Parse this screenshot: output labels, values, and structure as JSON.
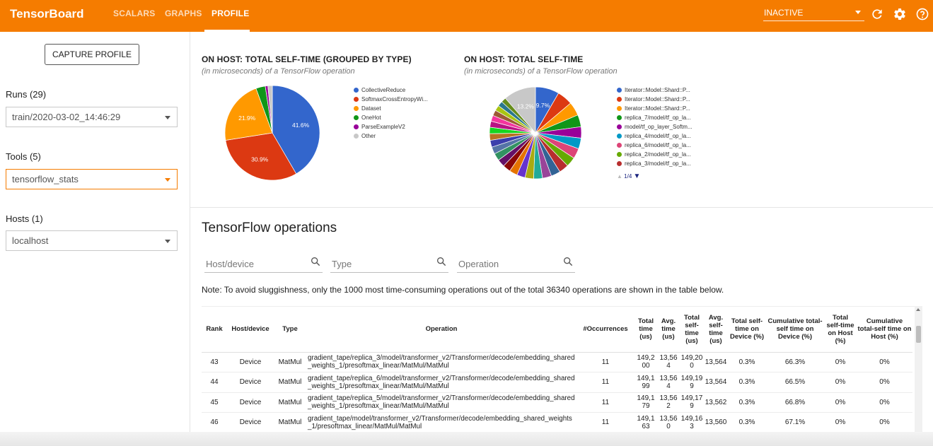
{
  "header": {
    "brand": "TensorBoard",
    "tabs": [
      {
        "label": "SCALARS"
      },
      {
        "label": "GRAPHS"
      },
      {
        "label": "PROFILE"
      }
    ],
    "run_selector": "INACTIVE"
  },
  "sidebar": {
    "capture_label": "CAPTURE PROFILE",
    "runs_label": "Runs (29)",
    "runs_value": "train/2020-03-02_14:46:29",
    "tools_label": "Tools (5)",
    "tools_value": "tensorflow_stats",
    "hosts_label": "Hosts (1)",
    "hosts_value": "localhost"
  },
  "charts": {
    "left_title": "ON HOST: TOTAL SELF-TIME (GROUPED BY TYPE)",
    "left_subtitle": "(in microseconds) of a TensorFlow operation",
    "right_title": "ON HOST: TOTAL SELF-TIME",
    "right_subtitle": "(in microseconds) of a TensorFlow operation",
    "pager": "1/4",
    "left_labels": {
      "a": "41.6%",
      "b": "30.9%",
      "c": "21.9%"
    },
    "right_labels": {
      "a": "9.7%",
      "b": "13.2%"
    }
  },
  "chart_data": [
    {
      "type": "pie",
      "title": "ON HOST: TOTAL SELF-TIME (GROUPED BY TYPE)",
      "subtitle": "(in microseconds) of a TensorFlow operation",
      "legend_position": "right",
      "slices": [
        {
          "name": "CollectiveReduce",
          "value": 41.6,
          "color": "#3366cc"
        },
        {
          "name": "SoftmaxCrossEntropyWi...",
          "value": 30.9,
          "color": "#dc3912"
        },
        {
          "name": "Dataset",
          "value": 21.9,
          "color": "#ff9900"
        },
        {
          "name": "OneHot",
          "value": 3.2,
          "color": "#109618"
        },
        {
          "name": "ParseExampleV2",
          "value": 0.9,
          "color": "#990099"
        },
        {
          "name": "Other",
          "value": 1.5,
          "color": "#c8c8c8"
        }
      ]
    },
    {
      "type": "pie",
      "title": "ON HOST: TOTAL SELF-TIME",
      "subtitle": "(in microseconds) of a TensorFlow operation",
      "legend_position": "right",
      "legend": [
        {
          "name": "Iterator::Model::Shard::P...",
          "color": "#3366cc"
        },
        {
          "name": "Iterator::Model::Shard::P...",
          "color": "#dc3912"
        },
        {
          "name": "Iterator::Model::Shard::P...",
          "color": "#ff9900"
        },
        {
          "name": "replica_7/model/tf_op_la...",
          "color": "#109618"
        },
        {
          "name": "model/tf_op_layer_Softm...",
          "color": "#990099"
        },
        {
          "name": "replica_4/model/tf_op_la...",
          "color": "#0099c6"
        },
        {
          "name": "replica_6/model/tf_op_la...",
          "color": "#dd4477"
        },
        {
          "name": "replica_2/model/tf_op_la...",
          "color": "#66aa00"
        },
        {
          "name": "replica_3/model/tf_op_la...",
          "color": "#b82e2e"
        }
      ],
      "values": [
        9.7,
        6.3,
        5.6,
        4.9,
        4.6,
        4.4,
        4.2,
        4.0,
        3.9,
        3.8,
        3.7,
        3.6,
        3.5,
        3.4,
        3.3,
        3.2,
        3.1,
        3.0,
        2.9,
        2.8,
        2.7,
        2.6,
        2.5,
        2.4,
        2.3,
        2.2,
        2.1,
        2.0,
        13.2
      ],
      "colors": [
        "#3366cc",
        "#dc3912",
        "#ff9900",
        "#109618",
        "#990099",
        "#0099c6",
        "#dd4477",
        "#66aa00",
        "#b82e2e",
        "#316395",
        "#994499",
        "#22aa99",
        "#aaaa11",
        "#6633cc",
        "#e67300",
        "#8b0707",
        "#651067",
        "#329262",
        "#5574a6",
        "#3b3eac",
        "#b77322",
        "#16d620",
        "#b91383",
        "#f4359e",
        "#9c5935",
        "#a9c413",
        "#2a778d",
        "#668d1c",
        "#c8c8c8"
      ]
    }
  ],
  "operations": {
    "title": "TensorFlow operations",
    "filters": {
      "host_placeholder": "Host/device",
      "type_placeholder": "Type",
      "op_placeholder": "Operation"
    },
    "note": "Note: To avoid sluggishness, only the 1000 most time-consuming operations out of the total 36340 operations are shown in the table below.",
    "columns": [
      "Rank",
      "Host/device",
      "Type",
      "Operation",
      "#Occurrences",
      "Total time (us)",
      "Avg. time (us)",
      "Total self-time (us)",
      "Avg. self-time (us)",
      "Total self-time on Device (%)",
      "Cumulative total-self time on Device (%)",
      "Total self-time on Host (%)",
      "Cumulative total-self time on Host (%)"
    ],
    "rows": [
      [
        "43",
        "Device",
        "MatMul",
        "gradient_tape/replica_3/model/transformer_v2/Transformer/decode/embedding_shared_weights_1/presoftmax_linear/MatMul/MatMul",
        "11",
        "149,200",
        "13,564",
        "149,200",
        "13,564",
        "0.3%",
        "66.3%",
        "0%",
        "0%"
      ],
      [
        "44",
        "Device",
        "MatMul",
        "gradient_tape/replica_6/model/transformer_v2/Transformer/decode/embedding_shared_weights_1/presoftmax_linear/MatMul/MatMul",
        "11",
        "149,199",
        "13,564",
        "149,199",
        "13,564",
        "0.3%",
        "66.5%",
        "0%",
        "0%"
      ],
      [
        "45",
        "Device",
        "MatMul",
        "gradient_tape/replica_5/model/transformer_v2/Transformer/decode/embedding_shared_weights_1/presoftmax_linear/MatMul/MatMul",
        "11",
        "149,179",
        "13,562",
        "149,179",
        "13,562",
        "0.3%",
        "66.8%",
        "0%",
        "0%"
      ],
      [
        "46",
        "Device",
        "MatMul",
        "gradient_tape/model/transformer_v2/Transformer/decode/embedding_shared_weights_1/presoftmax_linear/MatMul/MatMul",
        "11",
        "149,163",
        "13,560",
        "149,163",
        "13,560",
        "0.3%",
        "67.1%",
        "0%",
        "0%"
      ]
    ]
  }
}
